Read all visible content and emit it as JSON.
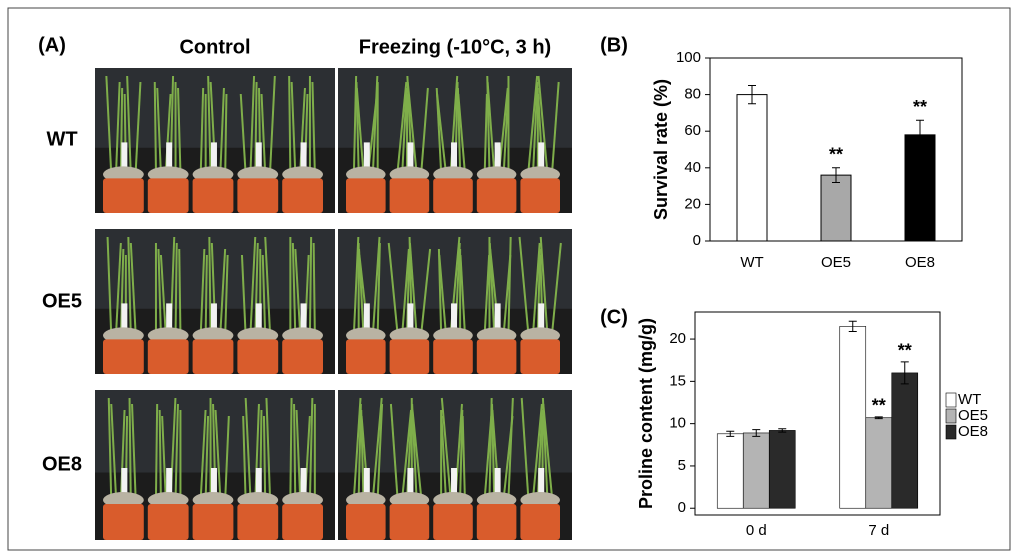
{
  "panel_a": {
    "label": "(A)",
    "columns": [
      "Control",
      "Freezing (-10°C, 3 h)"
    ],
    "rows": [
      "WT",
      "OE5",
      "OE8"
    ]
  },
  "chart_data": [
    {
      "type": "bar",
      "label": "(B)",
      "ylabel": "Survival rate (%)",
      "categories": [
        "WT",
        "OE5",
        "OE8"
      ],
      "values": [
        80,
        36,
        58
      ],
      "errors": [
        5,
        4,
        8
      ],
      "colors": [
        "#ffffff",
        "#a8a8a8",
        "#000000"
      ],
      "annotations": [
        null,
        "**",
        "**"
      ],
      "ylim": [
        0,
        100
      ],
      "yticks": [
        0,
        20,
        40,
        60,
        80,
        100
      ]
    },
    {
      "type": "grouped-bar",
      "label": "(C)",
      "ylabel": "Proline content (mg/g)",
      "categories": [
        "0 d",
        "7 d"
      ],
      "series": [
        {
          "name": "WT",
          "color": "#ffffff",
          "values": [
            8.8,
            21.5
          ],
          "errors": [
            0.3,
            0.6
          ],
          "annotations": [
            null,
            null
          ]
        },
        {
          "name": "OE5",
          "color": "#b4b4b4",
          "values": [
            8.9,
            10.7
          ],
          "errors": [
            0.4,
            0.1
          ],
          "annotations": [
            null,
            "**"
          ]
        },
        {
          "name": "OE8",
          "color": "#2a2a2a",
          "values": [
            9.2,
            16
          ],
          "errors": [
            0.2,
            1.3
          ],
          "annotations": [
            null,
            "**"
          ]
        }
      ],
      "ylim": [
        -0.8,
        23.2
      ],
      "yticks": [
        0,
        5,
        10,
        15,
        20
      ]
    }
  ]
}
